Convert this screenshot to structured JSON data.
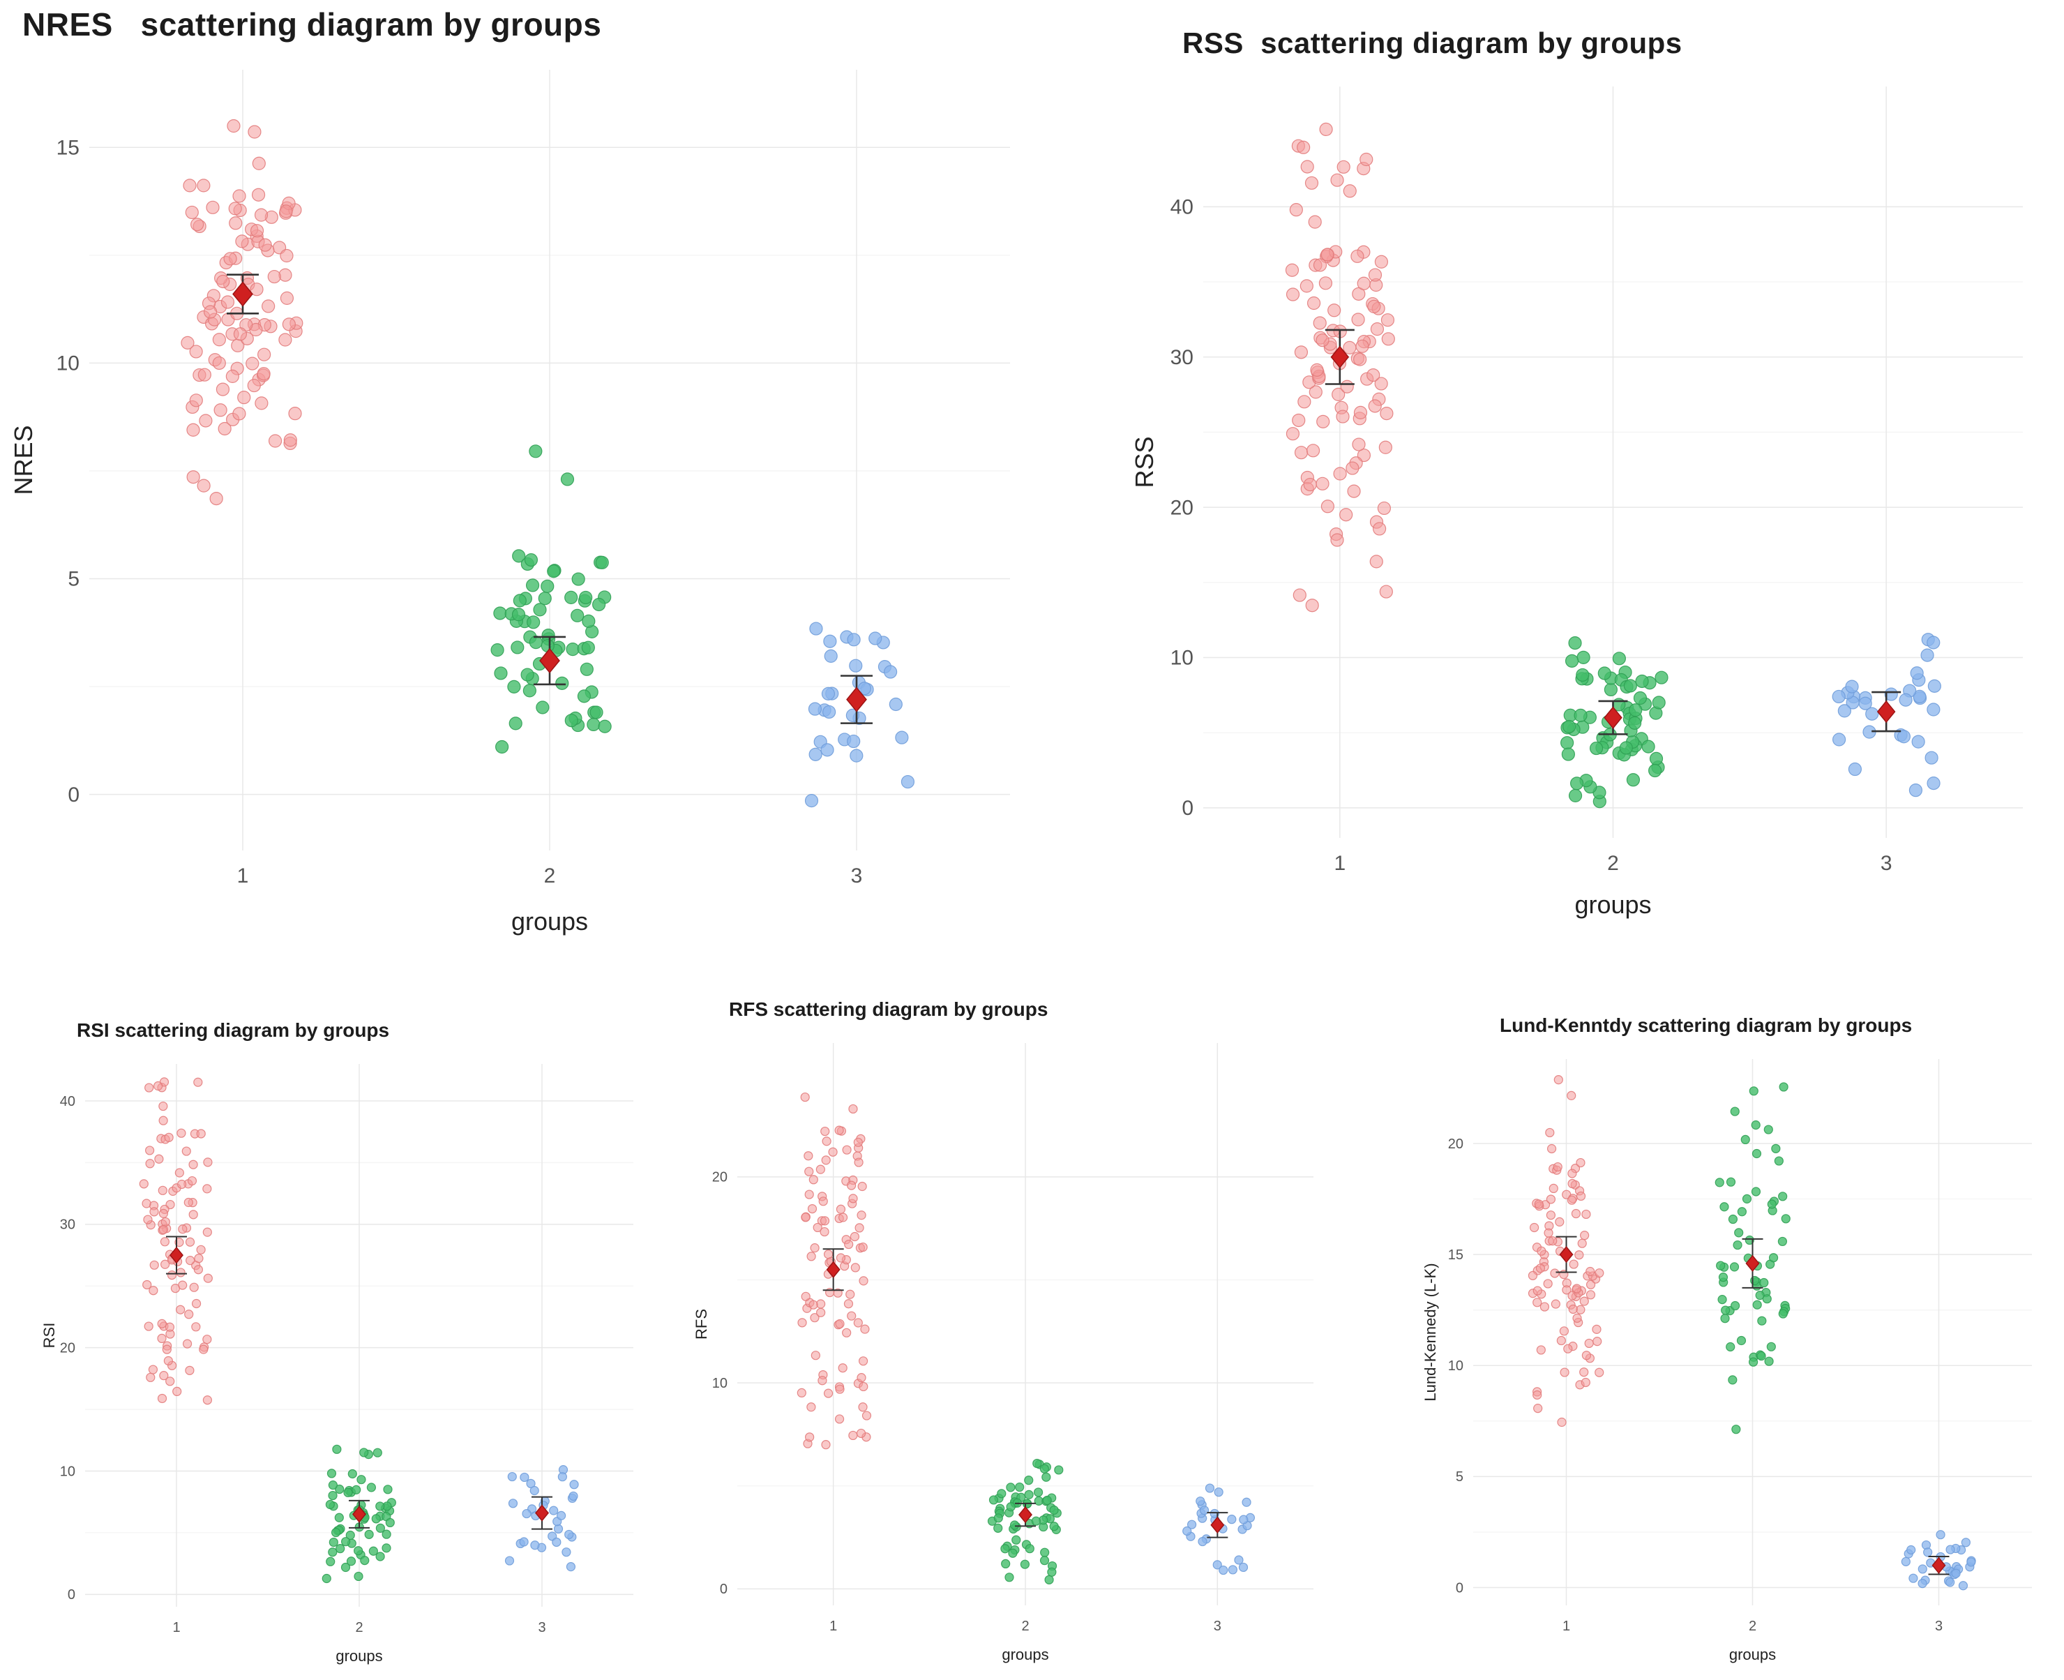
{
  "page": {
    "background": "#ffffff",
    "description_colors": {
      "group1_fill": "#f49a9a",
      "group1_stroke": "#e27b7b",
      "group2_fill": "#44bd6a",
      "group2_stroke": "#2f9e53",
      "group3_fill": "#8ab4ec",
      "group3_stroke": "#6f9cd9",
      "mean_marker": "#cf2020",
      "error_bar": "#333333",
      "grid_major": "#e8e8e8",
      "grid_minor": "#f4f4f4",
      "tick_text": "#555555",
      "axis_label_text": "#222222"
    }
  },
  "chart_data": [
    {
      "id": "nres",
      "type": "scatter",
      "variant": "jitter-strip-with-mean-ci",
      "title": "NRES   scattering diagram by groups",
      "xlabel": "groups",
      "ylabel": "NRES",
      "categories": [
        "1",
        "2",
        "3"
      ],
      "y_ticks": [
        0,
        5,
        10,
        15
      ],
      "ylim": [
        -1.3,
        16.8
      ],
      "grid": true,
      "legend": "none",
      "mean_marker": "red-diamond-with-error-bars",
      "groups": [
        {
          "category": "1",
          "color": "#f49a9a",
          "stroke": "#e27b7b",
          "opacity": 0.55,
          "n": 100,
          "mean": 11.6,
          "sd": 2.0,
          "range": [
            6.8,
            16.4
          ],
          "ci": 0.45,
          "seed": 101
        },
        {
          "category": "2",
          "color": "#44bd6a",
          "stroke": "#2f9e53",
          "opacity": 0.8,
          "n": 62,
          "mean": 3.1,
          "sd": 1.8,
          "range": [
            -0.3,
            9.0
          ],
          "ci": 0.55,
          "seed": 102
        },
        {
          "category": "3",
          "color": "#8ab4ec",
          "stroke": "#6f9cd9",
          "opacity": 0.75,
          "n": 30,
          "mean": 2.2,
          "sd": 1.1,
          "range": [
            -0.6,
            4.1
          ],
          "ci": 0.55,
          "seed": 103
        }
      ]
    },
    {
      "id": "rss",
      "type": "scatter",
      "variant": "jitter-strip-with-mean-ci",
      "title": "RSS  scattering diagram by groups",
      "xlabel": "groups",
      "ylabel": "RSS",
      "categories": [
        "1",
        "2",
        "3"
      ],
      "y_ticks": [
        0,
        10,
        20,
        30,
        40
      ],
      "ylim": [
        -2,
        48
      ],
      "grid": true,
      "legend": "none",
      "mean_marker": "red-diamond-with-error-bars",
      "groups": [
        {
          "category": "1",
          "color": "#f49a9a",
          "stroke": "#e27b7b",
          "opacity": 0.55,
          "n": 100,
          "mean": 30.0,
          "sd": 8.5,
          "range": [
            13.0,
            46.5
          ],
          "ci": 1.8,
          "seed": 201
        },
        {
          "category": "2",
          "color": "#44bd6a",
          "stroke": "#2f9e53",
          "opacity": 0.8,
          "n": 62,
          "mean": 6.0,
          "sd": 3.2,
          "range": [
            0.3,
            12.3
          ],
          "ci": 1.1,
          "seed": 202
        },
        {
          "category": "3",
          "color": "#8ab4ec",
          "stroke": "#6f9cd9",
          "opacity": 0.75,
          "n": 30,
          "mean": 6.4,
          "sd": 2.8,
          "range": [
            1.0,
            12.5
          ],
          "ci": 1.3,
          "seed": 203
        }
      ]
    },
    {
      "id": "rsi",
      "type": "scatter",
      "variant": "jitter-strip-with-mean-ci",
      "title": "RSI scattering diagram by groups",
      "xlabel": "groups",
      "ylabel": "RSI",
      "categories": [
        "1",
        "2",
        "3"
      ],
      "y_ticks": [
        0,
        10,
        20,
        30,
        40
      ],
      "ylim": [
        -1,
        43
      ],
      "grid": true,
      "legend": "none",
      "mean_marker": "red-diamond-with-error-bars",
      "groups": [
        {
          "category": "1",
          "color": "#f49a9a",
          "stroke": "#e27b7b",
          "opacity": 0.55,
          "n": 95,
          "mean": 27.5,
          "sd": 6.5,
          "range": [
            15.0,
            42.0
          ],
          "ci": 1.5,
          "seed": 301
        },
        {
          "category": "2",
          "color": "#44bd6a",
          "stroke": "#2f9e53",
          "opacity": 0.8,
          "n": 62,
          "mean": 6.5,
          "sd": 3.4,
          "range": [
            0.2,
            12.4
          ],
          "ci": 1.1,
          "seed": 302
        },
        {
          "category": "3",
          "color": "#8ab4ec",
          "stroke": "#6f9cd9",
          "opacity": 0.75,
          "n": 30,
          "mean": 6.6,
          "sd": 2.6,
          "range": [
            1.2,
            12.0
          ],
          "ci": 1.3,
          "seed": 303
        }
      ]
    },
    {
      "id": "rfs",
      "type": "scatter",
      "variant": "jitter-strip-with-mean-ci",
      "title": "RFS scattering diagram by groups",
      "xlabel": "groups",
      "ylabel": "RFS",
      "categories": [
        "1",
        "2",
        "3"
      ],
      "y_ticks": [
        0,
        10,
        20
      ],
      "ylim": [
        -0.8,
        26.5
      ],
      "grid": true,
      "legend": "none",
      "mean_marker": "red-diamond-with-error-bars",
      "groups": [
        {
          "category": "1",
          "color": "#f49a9a",
          "stroke": "#e27b7b",
          "opacity": 0.55,
          "n": 95,
          "mean": 15.5,
          "sd": 4.3,
          "range": [
            6.8,
            26.0
          ],
          "ci": 1.0,
          "seed": 401
        },
        {
          "category": "2",
          "color": "#44bd6a",
          "stroke": "#2f9e53",
          "opacity": 0.8,
          "n": 62,
          "mean": 3.6,
          "sd": 1.8,
          "range": [
            0.1,
            7.2
          ],
          "ci": 0.55,
          "seed": 402
        },
        {
          "category": "3",
          "color": "#8ab4ec",
          "stroke": "#6f9cd9",
          "opacity": 0.75,
          "n": 26,
          "mean": 3.1,
          "sd": 1.4,
          "range": [
            0.9,
            6.3
          ],
          "ci": 0.6,
          "seed": 403
        }
      ]
    },
    {
      "id": "lk",
      "type": "scatter",
      "variant": "jitter-strip-with-mean-ci",
      "title": "Lund-Kenntdy scattering diagram by groups",
      "xlabel": "groups",
      "ylabel": "Lund-Kennedy (L-K)",
      "categories": [
        "1",
        "2",
        "3"
      ],
      "y_ticks": [
        0,
        5,
        10,
        15,
        20
      ],
      "ylim": [
        -0.8,
        23.8
      ],
      "grid": true,
      "legend": "none",
      "mean_marker": "red-diamond-with-error-bars",
      "groups": [
        {
          "category": "1",
          "color": "#f49a9a",
          "stroke": "#e27b7b",
          "opacity": 0.55,
          "n": 95,
          "mean": 15.0,
          "sd": 3.8,
          "range": [
            6.8,
            23.0
          ],
          "ci": 0.8,
          "seed": 501
        },
        {
          "category": "2",
          "color": "#44bd6a",
          "stroke": "#2f9e53",
          "opacity": 0.8,
          "n": 62,
          "mean": 14.6,
          "sd": 4.0,
          "range": [
            6.9,
            23.0
          ],
          "ci": 1.1,
          "seed": 502
        },
        {
          "category": "3",
          "color": "#8ab4ec",
          "stroke": "#6f9cd9",
          "opacity": 0.75,
          "n": 30,
          "mean": 1.0,
          "sd": 0.7,
          "range": [
            0.0,
            2.6
          ],
          "ci": 0.4,
          "seed": 503
        }
      ]
    }
  ]
}
